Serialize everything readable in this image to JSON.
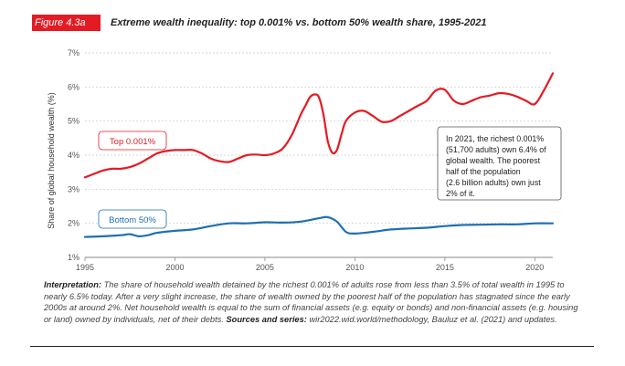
{
  "figure": {
    "badge": "Figure 4.3a",
    "title": "Extreme wealth inequality: top 0.001% vs. bottom 50% wealth share, 1995-2021"
  },
  "colors": {
    "top": "#e31b23",
    "bottom": "#1f6fb2",
    "grid": "#c8c8c8"
  },
  "chart_data": {
    "type": "line",
    "title": "Extreme wealth inequality: top 0.001% vs. bottom 50% wealth share, 1995-2021",
    "xlabel": "",
    "ylabel": "Share of global household wealth (%)",
    "xlim": [
      1995,
      2021
    ],
    "ylim": [
      1,
      7
    ],
    "x_ticks": [
      1995,
      2000,
      2005,
      2010,
      2015,
      2020
    ],
    "y_ticks": [
      1,
      2,
      3,
      4,
      5,
      6,
      7
    ],
    "y_tick_labels": [
      "1%",
      "2%",
      "3%",
      "4%",
      "5%",
      "6%",
      "7%"
    ],
    "grid": "horizontal dotted",
    "series": [
      {
        "name": "Top 0.001%",
        "x": [
          1995,
          1995.5,
          1996,
          1996.5,
          1997,
          1997.5,
          1998,
          1998.5,
          1999,
          1999.5,
          2000,
          2000.5,
          2001,
          2001.5,
          2002,
          2002.5,
          2003,
          2003.5,
          2004,
          2004.5,
          2005,
          2005.5,
          2006,
          2006.5,
          2007,
          2007.25,
          2007.5,
          2007.75,
          2008,
          2008.25,
          2008.5,
          2008.75,
          2009,
          2009.25,
          2009.5,
          2010,
          2010.5,
          2011,
          2011.5,
          2012,
          2012.5,
          2013,
          2013.5,
          2014,
          2014.5,
          2015,
          2015.5,
          2016,
          2016.5,
          2017,
          2017.5,
          2018,
          2018.5,
          2019,
          2019.5,
          2020,
          2020.5,
          2021
        ],
        "values": [
          3.35,
          3.45,
          3.55,
          3.6,
          3.6,
          3.65,
          3.75,
          3.9,
          4.05,
          4.12,
          4.15,
          4.15,
          4.15,
          4.05,
          3.9,
          3.82,
          3.8,
          3.9,
          4.0,
          4.02,
          4.0,
          4.05,
          4.2,
          4.6,
          5.2,
          5.45,
          5.7,
          5.78,
          5.7,
          5.2,
          4.4,
          4.07,
          4.15,
          4.6,
          5.0,
          5.25,
          5.3,
          5.15,
          4.98,
          5.0,
          5.15,
          5.3,
          5.45,
          5.6,
          5.9,
          5.92,
          5.6,
          5.5,
          5.6,
          5.7,
          5.75,
          5.82,
          5.8,
          5.72,
          5.6,
          5.5,
          5.9,
          6.4
        ]
      },
      {
        "name": "Bottom 50%",
        "x": [
          1995,
          1996,
          1997,
          1997.5,
          1998,
          1998.5,
          1999,
          2000,
          2001,
          2002,
          2003,
          2004,
          2005,
          2006,
          2007,
          2008,
          2008.5,
          2009,
          2009.5,
          2010,
          2011,
          2012,
          2013,
          2014,
          2015,
          2016,
          2017,
          2018,
          2019,
          2020,
          2021
        ],
        "values": [
          1.6,
          1.62,
          1.65,
          1.68,
          1.62,
          1.65,
          1.72,
          1.78,
          1.82,
          1.92,
          2.0,
          2.0,
          2.03,
          2.02,
          2.05,
          2.15,
          2.18,
          2.05,
          1.75,
          1.7,
          1.75,
          1.82,
          1.85,
          1.87,
          1.92,
          1.95,
          1.96,
          1.97,
          1.97,
          2.0,
          2.0
        ]
      }
    ],
    "labels": {
      "top": "Top 0.001%",
      "bottom": "Bottom 50%"
    },
    "annotation": [
      "In 2021, the richest 0.001%",
      "(51,700 adults) own 6.4% of",
      "global wealth. The poorest",
      "half of the population",
      "(2.6 billion adults) own just",
      "2% of it."
    ]
  },
  "interpretation": {
    "lead": "Interpretation:",
    "body": " The share of household wealth detained by the richest 0.001% of adults rose from less than 3.5% of total wealth in 1995 to nearly 6.5% today. After a very slight increase, the share of wealth owned by the poorest half of the population has stagnated since the early 2000s at around 2%. Net household wealth is equal to the sum of financial assets (e.g. equity or bonds) and non-financial assets (e.g. housing or land) owned by individuals, net of their debts. ",
    "sources_label": "Sources and series:",
    "sources": " wir2022.wid.world/methodology, Bauluz et al. (2021) and updates."
  }
}
